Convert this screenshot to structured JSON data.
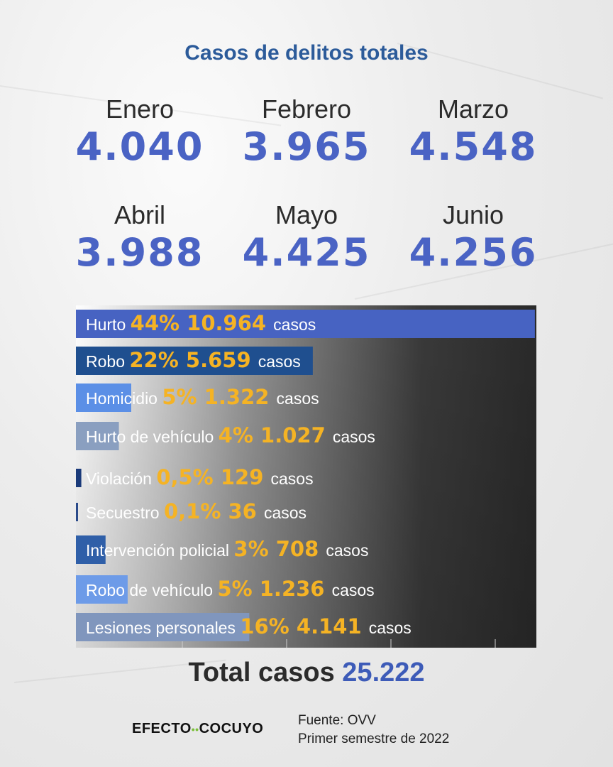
{
  "title": "Casos de delitos totales",
  "months": [
    {
      "label": "Enero",
      "value": "4.040"
    },
    {
      "label": "Febrero",
      "value": "3.965"
    },
    {
      "label": "Marzo",
      "value": "4.548"
    },
    {
      "label": "Abril",
      "value": "3.988"
    },
    {
      "label": "Mayo",
      "value": "4.425"
    },
    {
      "label": "Junio",
      "value": "4.256"
    }
  ],
  "chart_data": {
    "type": "bar",
    "orientation": "horizontal",
    "categories": [
      "Hurto",
      "Robo",
      "Homicidio",
      "Hurto de vehículo",
      "Violación",
      "Secuestro",
      "Intervención policial",
      "Robo de vehículo",
      "Lesiones personales"
    ],
    "percent_labels": [
      "44%",
      "22%",
      "5%",
      "4%",
      "0,5%",
      "0,1%",
      "3%",
      "5%",
      "16%"
    ],
    "count_labels": [
      "10.964",
      "5.659",
      "1.322",
      "1.027",
      "129",
      "36",
      "708",
      "1.236",
      "4.141"
    ],
    "values": [
      10964,
      5659,
      1322,
      1027,
      129,
      36,
      708,
      1236,
      4141
    ],
    "unit_label": "casos",
    "xlim": [
      0,
      11000
    ],
    "bar_colors": [
      "#4763c2",
      "#1f4f8f",
      "#5b8fe6",
      "#8a9fc0",
      "#1a3a7a",
      "#2a4a8a",
      "#2f5fa8",
      "#6d9be8",
      "#8096bd"
    ],
    "accent_color": "#f5b324"
  },
  "total": {
    "label": "Total casos",
    "value": "25.222"
  },
  "logo": {
    "left": "EFECTO",
    "right": "COCUYO"
  },
  "source": {
    "line1": "Fuente: OVV",
    "line2": "Primer semestre de 2022"
  }
}
